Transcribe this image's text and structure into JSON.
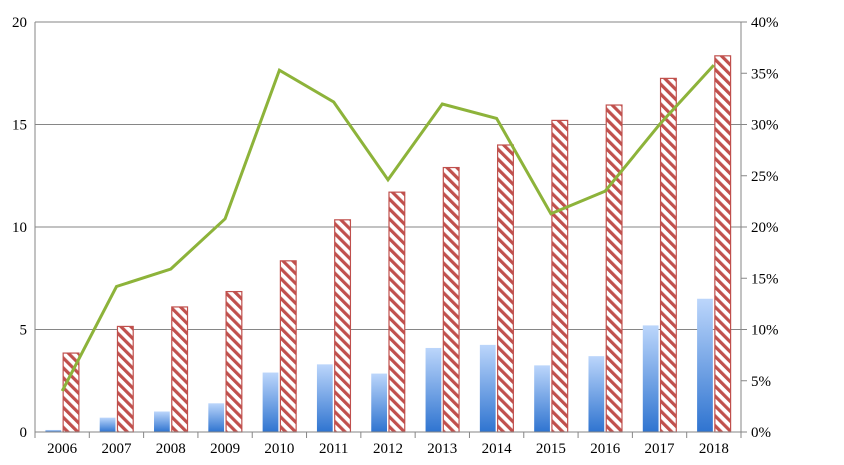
{
  "chart_data": {
    "type": "bar",
    "categories": [
      "2006",
      "2007",
      "2008",
      "2009",
      "2010",
      "2011",
      "2012",
      "2013",
      "2014",
      "2015",
      "2016",
      "2017",
      "2018"
    ],
    "series": [
      {
        "type": "bar",
        "axis": "left",
        "style": "gradient",
        "color": "#3a7fd6",
        "values": [
          0.1,
          0.7,
          1.0,
          1.4,
          2.9,
          3.3,
          2.85,
          4.1,
          4.25,
          3.25,
          3.7,
          5.2,
          6.5
        ]
      },
      {
        "type": "bar",
        "axis": "left",
        "style": "hatched",
        "color": "#c0504d",
        "values": [
          3.85,
          5.15,
          6.1,
          6.85,
          8.35,
          10.35,
          11.7,
          12.9,
          14.0,
          15.2,
          15.95,
          17.25,
          18.35
        ]
      },
      {
        "type": "line",
        "axis": "right",
        "color": "#8db33a",
        "values": [
          0.04,
          0.142,
          0.159,
          0.208,
          0.353,
          0.322,
          0.246,
          0.32,
          0.306,
          0.213,
          0.235,
          0.3,
          0.358
        ]
      }
    ],
    "y_left": {
      "min": 0,
      "max": 20,
      "ticks": [
        "0",
        "5",
        "10",
        "15",
        "20"
      ]
    },
    "y_right": {
      "min": 0,
      "max": 0.4,
      "ticks": [
        "0%",
        "5%",
        "10%",
        "15%",
        "20%",
        "25%",
        "30%",
        "35%",
        "40%"
      ]
    },
    "grid": true,
    "legend": "none"
  }
}
